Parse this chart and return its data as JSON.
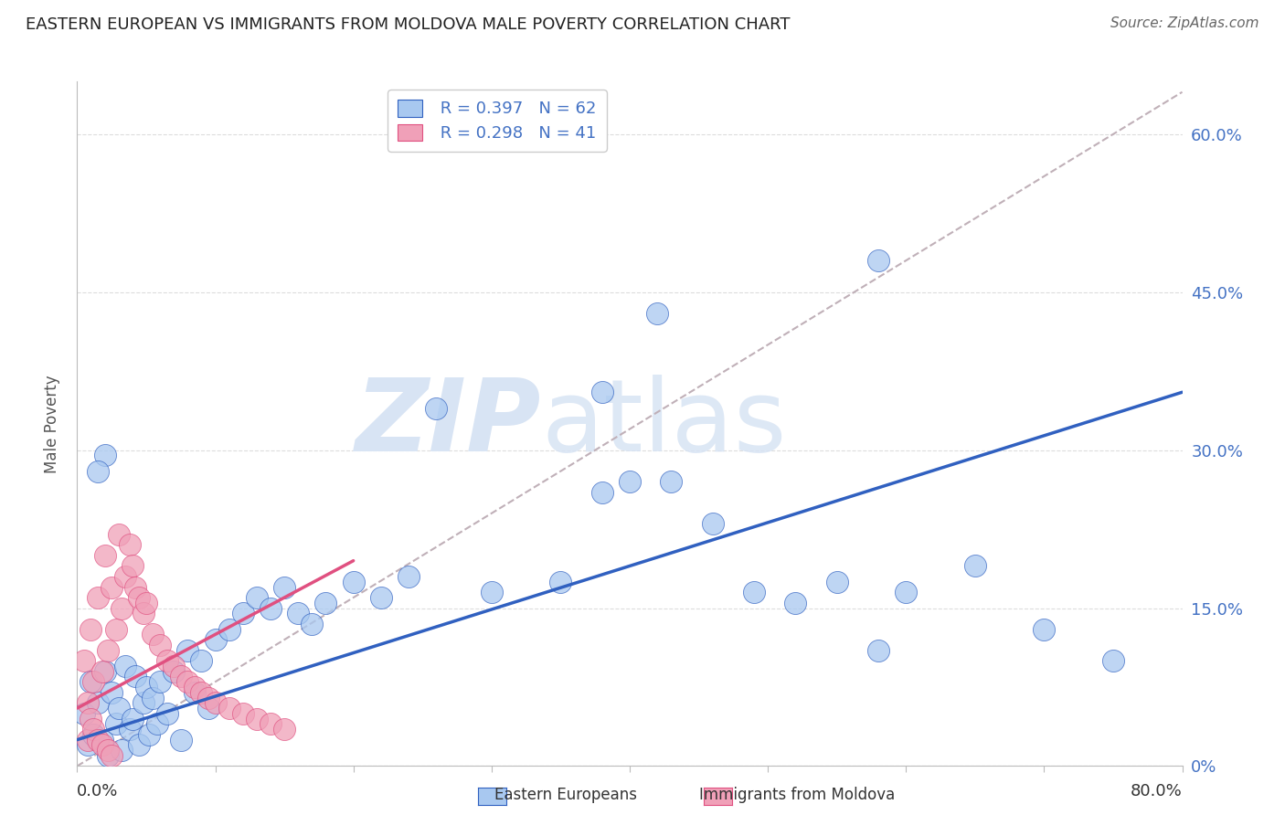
{
  "title": "EASTERN EUROPEAN VS IMMIGRANTS FROM MOLDOVA MALE POVERTY CORRELATION CHART",
  "source": "Source: ZipAtlas.com",
  "ylabel": "Male Poverty",
  "right_ytick_vals": [
    0.0,
    0.15,
    0.3,
    0.45,
    0.6
  ],
  "right_ytick_labels": [
    "0%",
    "15.0%",
    "30.0%",
    "45.0%",
    "60.0%"
  ],
  "xmin": 0.0,
  "xmax": 0.8,
  "ymin": 0.0,
  "ymax": 0.65,
  "legend_r1": "R = 0.397",
  "legend_n1": "N = 62",
  "legend_r2": "R = 0.298",
  "legend_n2": "N = 41",
  "color_blue": "#A8C8F0",
  "color_pink": "#F0A0B8",
  "color_blue_line": "#3060C0",
  "color_pink_line": "#E05080",
  "color_dash": "#C0B0B8",
  "watermark": "ZIPatlas",
  "watermark_color": "#D8E4F4",
  "blue_x": [
    0.005,
    0.008,
    0.01,
    0.012,
    0.015,
    0.018,
    0.02,
    0.022,
    0.025,
    0.028,
    0.03,
    0.032,
    0.035,
    0.038,
    0.04,
    0.042,
    0.045,
    0.048,
    0.05,
    0.052,
    0.055,
    0.058,
    0.06,
    0.065,
    0.07,
    0.075,
    0.08,
    0.085,
    0.09,
    0.095,
    0.1,
    0.11,
    0.12,
    0.13,
    0.14,
    0.15,
    0.16,
    0.17,
    0.18,
    0.2,
    0.22,
    0.24,
    0.26,
    0.3,
    0.35,
    0.38,
    0.4,
    0.43,
    0.46,
    0.49,
    0.52,
    0.55,
    0.58,
    0.6,
    0.65,
    0.7,
    0.75,
    0.58,
    0.38,
    0.42,
    0.02,
    0.015
  ],
  "blue_y": [
    0.05,
    0.02,
    0.08,
    0.03,
    0.06,
    0.025,
    0.09,
    0.01,
    0.07,
    0.04,
    0.055,
    0.015,
    0.095,
    0.035,
    0.045,
    0.085,
    0.02,
    0.06,
    0.075,
    0.03,
    0.065,
    0.04,
    0.08,
    0.05,
    0.09,
    0.025,
    0.11,
    0.07,
    0.1,
    0.055,
    0.12,
    0.13,
    0.145,
    0.16,
    0.15,
    0.17,
    0.145,
    0.135,
    0.155,
    0.175,
    0.16,
    0.18,
    0.34,
    0.165,
    0.175,
    0.26,
    0.27,
    0.27,
    0.23,
    0.165,
    0.155,
    0.175,
    0.11,
    0.165,
    0.19,
    0.13,
    0.1,
    0.48,
    0.355,
    0.43,
    0.295,
    0.28
  ],
  "pink_x": [
    0.005,
    0.008,
    0.01,
    0.012,
    0.015,
    0.018,
    0.02,
    0.022,
    0.025,
    0.028,
    0.03,
    0.032,
    0.035,
    0.038,
    0.04,
    0.042,
    0.045,
    0.048,
    0.05,
    0.055,
    0.06,
    0.065,
    0.07,
    0.075,
    0.08,
    0.085,
    0.09,
    0.095,
    0.1,
    0.11,
    0.12,
    0.13,
    0.14,
    0.15,
    0.008,
    0.01,
    0.012,
    0.015,
    0.018,
    0.022,
    0.025
  ],
  "pink_y": [
    0.1,
    0.06,
    0.13,
    0.08,
    0.16,
    0.09,
    0.2,
    0.11,
    0.17,
    0.13,
    0.22,
    0.15,
    0.18,
    0.21,
    0.19,
    0.17,
    0.16,
    0.145,
    0.155,
    0.125,
    0.115,
    0.1,
    0.095,
    0.085,
    0.08,
    0.075,
    0.07,
    0.065,
    0.06,
    0.055,
    0.05,
    0.045,
    0.04,
    0.035,
    0.025,
    0.045,
    0.035,
    0.025,
    0.02,
    0.015,
    0.01
  ],
  "blue_line_x0": 0.0,
  "blue_line_x1": 0.8,
  "blue_line_y0": 0.025,
  "blue_line_y1": 0.355,
  "pink_line_x0": 0.0,
  "pink_line_x1": 0.2,
  "pink_line_y0": 0.055,
  "pink_line_y1": 0.195,
  "dash_line_x0": 0.0,
  "dash_line_x1": 0.8,
  "dash_line_y0": 0.0,
  "dash_line_y1": 0.64
}
